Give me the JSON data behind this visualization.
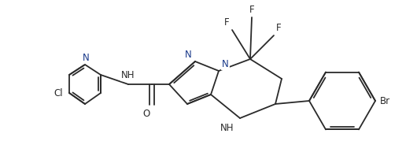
{
  "bg_color": "#ffffff",
  "line_color": "#2a2a2a",
  "bond_lw": 1.3,
  "font_size": 8.5,
  "figsize": [
    5.3,
    2.12
  ],
  "dpi": 100,
  "xlim": [
    0,
    530
  ],
  "ylim": [
    0,
    212
  ]
}
